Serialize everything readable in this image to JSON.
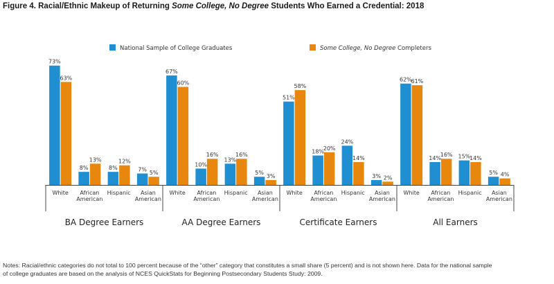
{
  "figure": {
    "title_prefix": "Figure 4. Racial/Ethnic Makeup of Returning ",
    "title_emphasis": "Some College, No Degree",
    "title_suffix": " Students Who Earned a Credential: 2018"
  },
  "chart_data": {
    "type": "bar",
    "ylim": [
      0,
      75
    ],
    "value_suffix": "%",
    "legend_position": "top",
    "grid": false,
    "series": [
      {
        "name": "National Sample of College Graduates",
        "color": "#1F8FD1"
      },
      {
        "name": "Some College, No Degree",
        "name_suffix": " Completers",
        "color": "#E8870E"
      }
    ],
    "groups": [
      {
        "label": "BA Degree Earners",
        "categories": [
          {
            "lines": [
              "White"
            ],
            "values": [
              73,
              63
            ]
          },
          {
            "lines": [
              "African",
              "American"
            ],
            "values": [
              8,
              13
            ]
          },
          {
            "lines": [
              "Hispanic"
            ],
            "values": [
              8,
              12
            ]
          },
          {
            "lines": [
              "Asian",
              "American"
            ],
            "values": [
              7,
              5
            ]
          }
        ]
      },
      {
        "label": "AA Degree Earners",
        "categories": [
          {
            "lines": [
              "White"
            ],
            "values": [
              67,
              60
            ]
          },
          {
            "lines": [
              "African",
              "American"
            ],
            "values": [
              10,
              16
            ]
          },
          {
            "lines": [
              "Hispanic"
            ],
            "values": [
              13,
              16
            ]
          },
          {
            "lines": [
              "Asian",
              "American"
            ],
            "values": [
              5,
              3
            ]
          }
        ]
      },
      {
        "label": "Certificate Earners",
        "categories": [
          {
            "lines": [
              "White"
            ],
            "values": [
              51,
              58
            ]
          },
          {
            "lines": [
              "African",
              "American"
            ],
            "values": [
              18,
              20
            ]
          },
          {
            "lines": [
              "Hispanic"
            ],
            "values": [
              24,
              14
            ]
          },
          {
            "lines": [
              "Asian",
              "American"
            ],
            "values": [
              3,
              2
            ]
          }
        ]
      },
      {
        "label": "All Earners",
        "categories": [
          {
            "lines": [
              "White"
            ],
            "values": [
              62,
              61
            ]
          },
          {
            "lines": [
              "African",
              "American"
            ],
            "values": [
              14,
              16
            ]
          },
          {
            "lines": [
              "Hispanic"
            ],
            "values": [
              15,
              14
            ]
          },
          {
            "lines": [
              "Asian",
              "American"
            ],
            "values": [
              5,
              4
            ]
          }
        ]
      }
    ]
  },
  "notes": {
    "line1": "Notes: Racial/ethnic categories do not total to 100 percent because of the “other” category that constitutes a small share (5 percent) and is not shown here. Data for the national sample",
    "line2": "of college graduates are based on the analysis of NCES QuickStats for Beginning Postsecondary Students Study: 2009."
  }
}
